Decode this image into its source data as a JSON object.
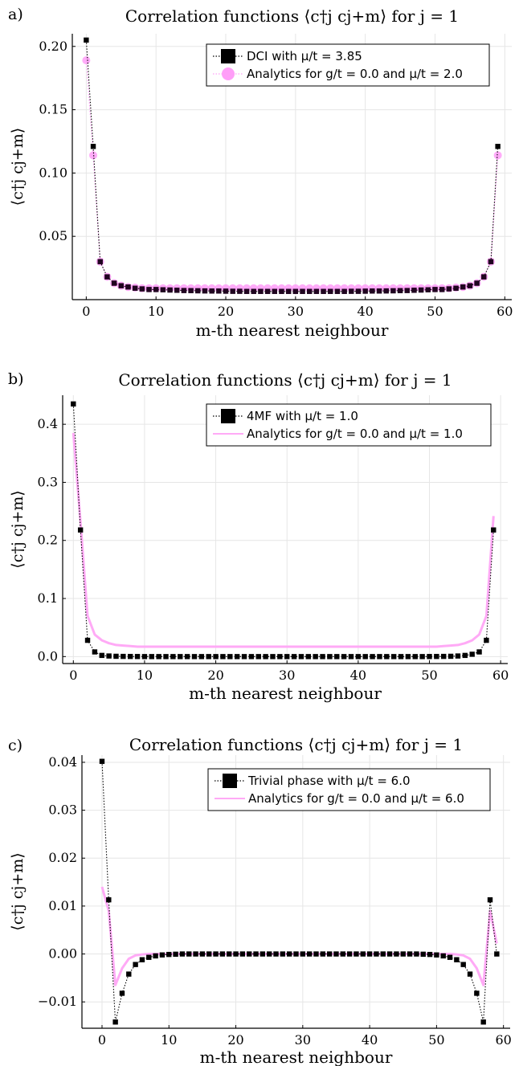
{
  "chart_data": [
    {
      "type": "scatter",
      "panel_label": "a)",
      "title": "Correlation functions ⟨c†j cj+m⟩ for j = 1",
      "xlabel": "m-th nearest neighbour",
      "ylabel": "⟨c†j cj+m⟩",
      "xlim": [
        -2,
        61
      ],
      "ylim": [
        0,
        0.21
      ],
      "xticks": [
        0,
        10,
        20,
        30,
        40,
        50,
        60
      ],
      "yticks": [
        0.05,
        0.1,
        0.15,
        0.2
      ],
      "ytick_labels": [
        "0.05",
        "0.10",
        "0.15",
        "0.20"
      ],
      "grid": true,
      "legend_position": "top-right",
      "x": [
        0,
        1,
        2,
        3,
        4,
        5,
        6,
        7,
        8,
        9,
        10,
        11,
        12,
        13,
        14,
        15,
        16,
        17,
        18,
        19,
        20,
        21,
        22,
        23,
        24,
        25,
        26,
        27,
        28,
        29,
        30,
        31,
        32,
        33,
        34,
        35,
        36,
        37,
        38,
        39,
        40,
        41,
        42,
        43,
        44,
        45,
        46,
        47,
        48,
        49,
        50,
        51,
        52,
        53,
        54,
        55,
        56,
        57,
        58,
        59
      ],
      "series": [
        {
          "name": "DCI with μ/t = 3.85",
          "style": "black-dotted-squares",
          "color": "#000000",
          "values": [
            0.205,
            0.121,
            0.03,
            0.018,
            0.013,
            0.011,
            0.01,
            0.009,
            0.0085,
            0.008,
            0.008,
            0.0078,
            0.0076,
            0.0074,
            0.0072,
            0.0071,
            0.007,
            0.0069,
            0.0068,
            0.0068,
            0.0067,
            0.0066,
            0.0066,
            0.0065,
            0.0065,
            0.0065,
            0.0065,
            0.0065,
            0.0065,
            0.0065,
            0.0065,
            0.0065,
            0.0065,
            0.0065,
            0.0065,
            0.0065,
            0.0065,
            0.0065,
            0.0066,
            0.0066,
            0.0067,
            0.0068,
            0.0068,
            0.0069,
            0.007,
            0.0071,
            0.0072,
            0.0074,
            0.0076,
            0.0078,
            0.008,
            0.008,
            0.0085,
            0.009,
            0.01,
            0.011,
            0.013,
            0.018,
            0.03,
            0.121
          ]
        },
        {
          "name": "Analytics for g/t = 0.0 and μ/t = 2.0",
          "style": "pink-dotted-circles",
          "color": "#ff9ef8",
          "values": [
            0.189,
            0.114,
            0.03,
            0.018,
            0.013,
            0.011,
            0.01,
            0.0095,
            0.009,
            0.009,
            0.009,
            0.009,
            0.009,
            0.009,
            0.009,
            0.009,
            0.009,
            0.009,
            0.009,
            0.009,
            0.009,
            0.009,
            0.009,
            0.009,
            0.009,
            0.009,
            0.009,
            0.009,
            0.009,
            0.009,
            0.009,
            0.009,
            0.009,
            0.009,
            0.009,
            0.009,
            0.009,
            0.009,
            0.009,
            0.009,
            0.009,
            0.009,
            0.009,
            0.009,
            0.009,
            0.009,
            0.009,
            0.009,
            0.009,
            0.009,
            0.009,
            0.009,
            0.009,
            0.0095,
            0.01,
            0.011,
            0.013,
            0.018,
            0.03,
            0.114
          ]
        }
      ]
    },
    {
      "type": "line",
      "panel_label": "b)",
      "title": "Correlation functions ⟨c†j cj+m⟩ for j = 1",
      "xlabel": "m-th nearest neighbour",
      "ylabel": "⟨c†j cj+m⟩",
      "xlim": [
        -1.5,
        61
      ],
      "ylim": [
        -0.012,
        0.45
      ],
      "xticks": [
        0,
        10,
        20,
        30,
        40,
        50,
        60
      ],
      "yticks": [
        0.0,
        0.1,
        0.2,
        0.3,
        0.4
      ],
      "ytick_labels": [
        "0.0",
        "0.1",
        "0.2",
        "0.3",
        "0.4"
      ],
      "grid": true,
      "legend_position": "top-right",
      "x": [
        0,
        1,
        2,
        3,
        4,
        5,
        6,
        7,
        8,
        9,
        10,
        11,
        12,
        13,
        14,
        15,
        16,
        17,
        18,
        19,
        20,
        21,
        22,
        23,
        24,
        25,
        26,
        27,
        28,
        29,
        30,
        31,
        32,
        33,
        34,
        35,
        36,
        37,
        38,
        39,
        40,
        41,
        42,
        43,
        44,
        45,
        46,
        47,
        48,
        49,
        50,
        51,
        52,
        53,
        54,
        55,
        56,
        57,
        58,
        59
      ],
      "series": [
        {
          "name": "4MF with μ/t = 1.0",
          "style": "black-dotted-squares",
          "color": "#000000",
          "values": [
            0.435,
            0.218,
            0.028,
            0.008,
            0.002,
            0.001,
            0.0005,
            0.0003,
            0.0002,
            0.0001,
            0,
            0,
            0,
            0,
            0,
            0,
            0,
            0,
            0,
            0,
            0,
            0,
            0,
            0,
            0,
            0,
            0,
            0,
            0,
            0,
            0,
            0,
            0,
            0,
            0,
            0,
            0,
            0,
            0,
            0,
            0,
            0,
            0,
            0,
            0,
            0,
            0,
            0,
            0,
            0,
            0.0001,
            0.0002,
            0.0003,
            0.0005,
            0.001,
            0.002,
            0.004,
            0.008,
            0.028,
            0.218
          ]
        },
        {
          "name": "Analytics for g/t = 0.0 and μ/t = 1.0",
          "style": "pink-line",
          "color": "#ffaaf6",
          "values": [
            0.385,
            0.232,
            0.07,
            0.038,
            0.028,
            0.023,
            0.02,
            0.019,
            0.018,
            0.017,
            0.017,
            0.017,
            0.017,
            0.017,
            0.017,
            0.017,
            0.017,
            0.017,
            0.017,
            0.017,
            0.017,
            0.017,
            0.017,
            0.017,
            0.017,
            0.017,
            0.017,
            0.017,
            0.017,
            0.017,
            0.017,
            0.017,
            0.017,
            0.017,
            0.017,
            0.017,
            0.017,
            0.017,
            0.017,
            0.017,
            0.017,
            0.017,
            0.017,
            0.017,
            0.017,
            0.017,
            0.017,
            0.017,
            0.017,
            0.017,
            0.017,
            0.017,
            0.018,
            0.019,
            0.02,
            0.023,
            0.028,
            0.038,
            0.07,
            0.242
          ]
        }
      ]
    },
    {
      "type": "line",
      "panel_label": "c)",
      "title": "Correlation functions ⟨c†j cj+m⟩ for j = 1",
      "xlabel": "m-th nearest neighbour",
      "ylabel": "⟨c†j cj+m⟩",
      "xlim": [
        -3,
        61
      ],
      "ylim": [
        -0.0155,
        0.0415
      ],
      "xticks": [
        0,
        10,
        20,
        30,
        40,
        50,
        60
      ],
      "yticks": [
        -0.01,
        0.0,
        0.01,
        0.02,
        0.03,
        0.04
      ],
      "ytick_labels": [
        "−0.01",
        "0.00",
        "0.01",
        "0.02",
        "0.03",
        "0.04"
      ],
      "grid": true,
      "legend_position": "top-right",
      "x": [
        0,
        1,
        2,
        3,
        4,
        5,
        6,
        7,
        8,
        9,
        10,
        11,
        12,
        13,
        14,
        15,
        16,
        17,
        18,
        19,
        20,
        21,
        22,
        23,
        24,
        25,
        26,
        27,
        28,
        29,
        30,
        31,
        32,
        33,
        34,
        35,
        36,
        37,
        38,
        39,
        40,
        41,
        42,
        43,
        44,
        45,
        46,
        47,
        48,
        49,
        50,
        51,
        52,
        53,
        54,
        55,
        56,
        57,
        58,
        59
      ],
      "series": [
        {
          "name": "Trivial phase with μ/t = 6.0",
          "style": "black-dotted-squares",
          "color": "#000000",
          "values": [
            0.0402,
            0.0113,
            -0.0142,
            -0.0082,
            -0.0042,
            -0.0022,
            -0.0012,
            -0.0007,
            -0.0004,
            -0.0002,
            -0.0001,
            -5e-05,
            0,
            0,
            0,
            0,
            0,
            0,
            0,
            0,
            0,
            0,
            0,
            0,
            0,
            0,
            0,
            0,
            0,
            0,
            0,
            0,
            0,
            0,
            0,
            0,
            0,
            0,
            0,
            0,
            0,
            0,
            0,
            0,
            0,
            0,
            0,
            0,
            -5e-05,
            -0.0001,
            -0.0002,
            -0.0004,
            -0.0007,
            -0.0012,
            -0.0022,
            -0.0042,
            -0.0082,
            -0.0142,
            0.0113,
            0
          ]
        },
        {
          "name": "Analytics for g/t = 0.0 and μ/t = 6.0",
          "style": "pink-line",
          "color": "#ffaaf6",
          "values": [
            0.014,
            0.009,
            -0.0065,
            -0.003,
            -0.001,
            -0.0003,
            -0.0001,
            0,
            0,
            0,
            0,
            0,
            0,
            0,
            0,
            0,
            0,
            0,
            0,
            0,
            0,
            0,
            0,
            0,
            0,
            0,
            0,
            0,
            0,
            0,
            0,
            0,
            0,
            0,
            0,
            0,
            0,
            0,
            0,
            0,
            0,
            0,
            0,
            0,
            0,
            0,
            0,
            0,
            0,
            0,
            0,
            0,
            0,
            -0.0001,
            -0.0003,
            -0.001,
            -0.003,
            -0.0065,
            0.009,
            0.0022
          ]
        }
      ]
    }
  ]
}
